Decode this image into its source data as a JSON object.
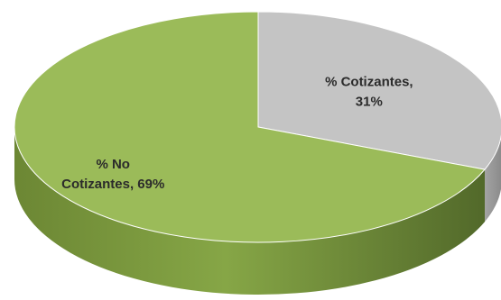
{
  "chart_data": {
    "type": "pie",
    "style": "3d",
    "title": "",
    "legend": "none",
    "slices": [
      {
        "label_lines": [
          "% Cotizantes,",
          "31%"
        ],
        "value": 31,
        "color": "#c4c4c4",
        "side_color": "#9a9a9a"
      },
      {
        "label_lines": [
          "% No",
          "Cotizantes, 69%"
        ],
        "value": 69,
        "color": "#9bbb59",
        "side_color": "#6f8a35"
      }
    ]
  }
}
